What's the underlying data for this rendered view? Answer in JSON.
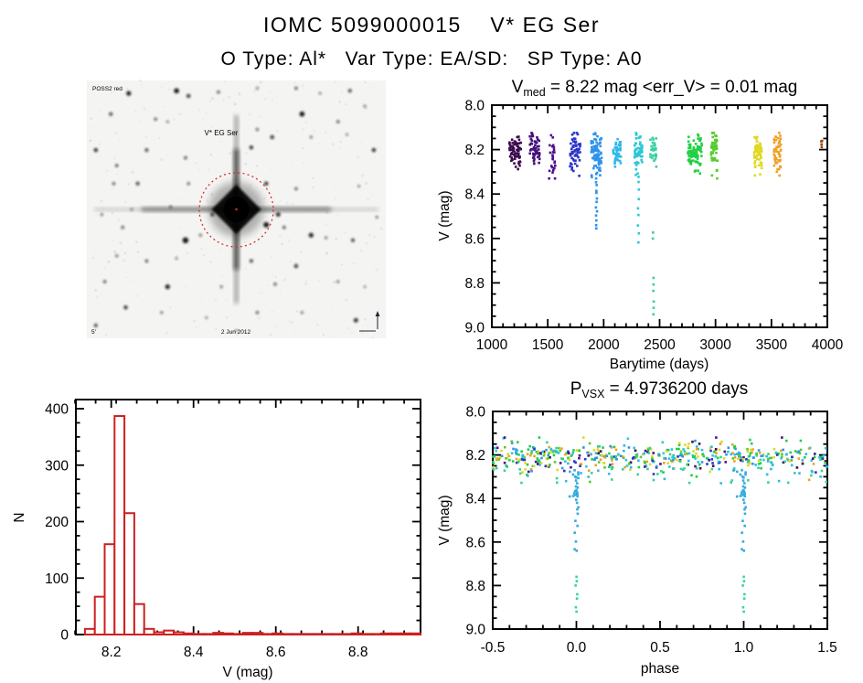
{
  "page": {
    "title": "IOMC 5099000015    V* EG Ser",
    "subtitle": "O Type: Al*   Var Type: EA/SD:   SP Type: A0"
  },
  "finder": {
    "star_label": "V* EG Ser",
    "corner_text": "POSS2 red",
    "bottom_text": "2 Jun 2012",
    "scale_text": "5'",
    "circle_color": "#d03030",
    "annotation_color": "#2a2a99",
    "stars": [
      [
        3,
        27,
        2.2,
        0.85
      ],
      [
        8,
        13,
        2.0,
        0.7
      ],
      [
        14,
        5,
        2.6,
        0.9
      ],
      [
        30,
        4,
        2.8,
        0.95
      ],
      [
        34,
        6,
        2.2,
        0.8
      ],
      [
        44,
        4.5,
        1.8,
        0.6
      ],
      [
        57,
        3,
        1.6,
        0.5
      ],
      [
        70,
        3,
        1.8,
        0.65
      ],
      [
        78,
        5,
        1.5,
        0.5
      ],
      [
        88,
        4,
        2.0,
        0.7
      ],
      [
        72,
        13,
        2.8,
        0.95
      ],
      [
        84,
        16,
        1.8,
        0.6
      ],
      [
        93,
        10,
        1.6,
        0.55
      ],
      [
        23,
        15,
        1.8,
        0.6
      ],
      [
        27,
        16,
        1.5,
        0.5
      ],
      [
        57,
        19,
        1.7,
        0.6
      ],
      [
        62,
        22,
        2.2,
        0.8
      ],
      [
        75,
        22,
        1.6,
        0.55
      ],
      [
        87,
        21,
        1.4,
        0.5
      ],
      [
        20,
        27,
        2.0,
        0.7
      ],
      [
        10,
        33,
        1.6,
        0.8
      ],
      [
        33,
        30,
        1.8,
        0.65
      ],
      [
        55,
        26,
        2.0,
        0.9
      ],
      [
        96,
        27,
        2.2,
        0.85
      ],
      [
        9,
        40,
        1.8,
        0.6
      ],
      [
        17,
        40,
        2.0,
        0.75
      ],
      [
        34,
        40,
        1.7,
        0.6
      ],
      [
        60,
        40,
        2.2,
        0.85
      ],
      [
        70,
        42,
        1.8,
        0.6
      ],
      [
        91,
        41,
        1.5,
        0.5
      ],
      [
        5,
        52,
        1.6,
        0.55
      ],
      [
        15,
        50,
        1.5,
        0.5
      ],
      [
        28,
        49,
        1.6,
        0.6
      ],
      [
        42,
        52,
        2.0,
        0.8
      ],
      [
        64,
        52,
        2.4,
        0.9
      ],
      [
        97,
        53,
        1.5,
        0.6
      ],
      [
        12,
        57,
        1.8,
        0.6
      ],
      [
        33,
        62,
        3.2,
        0.95
      ],
      [
        38,
        60,
        1.6,
        0.6
      ],
      [
        60,
        56,
        3.0,
        0.95
      ],
      [
        66,
        57,
        1.8,
        0.65
      ],
      [
        75,
        60,
        2.6,
        0.9
      ],
      [
        80,
        61,
        1.6,
        0.55
      ],
      [
        89,
        62,
        2.0,
        0.75
      ],
      [
        10,
        68,
        1.6,
        0.6
      ],
      [
        20,
        70,
        1.8,
        0.65
      ],
      [
        30,
        69,
        1.5,
        0.5
      ],
      [
        55,
        70,
        2.0,
        0.7
      ],
      [
        70,
        72,
        2.2,
        0.8
      ],
      [
        6,
        78,
        1.8,
        0.65
      ],
      [
        27,
        80,
        2.6,
        0.9
      ],
      [
        45,
        80,
        1.6,
        0.55
      ],
      [
        63,
        79,
        1.8,
        0.6
      ],
      [
        84,
        78,
        1.6,
        0.55
      ],
      [
        93,
        80,
        1.4,
        0.5
      ],
      [
        13,
        88,
        2.2,
        0.8
      ],
      [
        25,
        90,
        1.6,
        0.55
      ],
      [
        40,
        92,
        1.5,
        0.5
      ],
      [
        57,
        90,
        1.8,
        0.6
      ],
      [
        72,
        90,
        1.6,
        0.55
      ],
      [
        90,
        93,
        2.4,
        0.85
      ],
      [
        3,
        95,
        2.0,
        0.7
      ],
      [
        50,
        97,
        1.5,
        0.5
      ]
    ]
  },
  "chart_data": [
    {
      "type": "scatter",
      "name": "lightcurve-vs-time",
      "title_parts": {
        "pre": "V",
        "sub": "med",
        "post": " = 8.22 mag <err_V> = 0.01 mag"
      },
      "xlabel": "Barytime (days)",
      "ylabel": "V (mag)",
      "xlim": [
        1000,
        4000
      ],
      "ylim": [
        8.0,
        9.0
      ],
      "y_inverted": true,
      "xticks": [
        1000,
        1500,
        2000,
        2500,
        3000,
        3500,
        4000
      ],
      "xtick_minor": 100,
      "yticks": [
        8.0,
        8.2,
        8.4,
        8.6,
        8.8,
        9.0
      ],
      "ytick_minor": 0.05,
      "median_v": 8.22,
      "err_v": 0.01,
      "clusters": [
        {
          "t": 1210,
          "dt": 45,
          "color": "#3b0b4e",
          "n": 70,
          "vc": 8.21,
          "vs": 0.04
        },
        {
          "t": 1385,
          "dt": 40,
          "color": "#45107c",
          "n": 50,
          "vc": 8.2,
          "vs": 0.038
        },
        {
          "t": 1540,
          "dt": 25,
          "color": "#4d0f8e",
          "n": 25,
          "vc": 8.23,
          "vs": 0.045
        },
        {
          "t": 1745,
          "dt": 40,
          "color": "#2b35c8",
          "n": 60,
          "vc": 8.21,
          "vs": 0.04
        },
        {
          "t": 1935,
          "dt": 40,
          "color": "#2f93e8",
          "n": 80,
          "vc": 8.21,
          "vs": 0.045,
          "tail": [
            8.3,
            8.31,
            8.33,
            8.35,
            8.36,
            8.38,
            8.4,
            8.42,
            8.44,
            8.46,
            8.48,
            8.5,
            8.52,
            8.54,
            8.56
          ]
        },
        {
          "t": 2120,
          "dt": 30,
          "color": "#30b8e8",
          "n": 45,
          "vc": 8.21,
          "vs": 0.04
        },
        {
          "t": 2310,
          "dt": 30,
          "color": "#2cc8d8",
          "n": 60,
          "vc": 8.2,
          "vs": 0.045,
          "tail": [
            8.32,
            8.35,
            8.38,
            8.42,
            8.46,
            8.5,
            8.54,
            8.58,
            8.62
          ]
        },
        {
          "t": 2445,
          "dt": 25,
          "color": "#3ad0a0",
          "n": 30,
          "vc": 8.21,
          "vs": 0.035,
          "tail": [
            8.57,
            8.6,
            8.78,
            8.81,
            8.84,
            8.88,
            8.91,
            8.94
          ]
        },
        {
          "t": 2815,
          "dt": 55,
          "color": "#22d044",
          "n": 90,
          "vc": 8.21,
          "vs": 0.035
        },
        {
          "t": 2990,
          "dt": 25,
          "color": "#56cc30",
          "n": 50,
          "vc": 8.2,
          "vs": 0.048
        },
        {
          "t": 3380,
          "dt": 30,
          "color": "#e0d820",
          "n": 60,
          "vc": 8.2,
          "vs": 0.045
        },
        {
          "t": 3555,
          "dt": 28,
          "color": "#f0a028",
          "n": 55,
          "vc": 8.21,
          "vs": 0.045
        },
        {
          "t": 3950,
          "dt": 8,
          "color": "#a84018",
          "n": 4,
          "vc": 8.17,
          "vs": 0.012
        }
      ]
    },
    {
      "type": "histogram",
      "name": "v-magnitude-histogram",
      "xlabel": "V (mag)",
      "ylabel": "N",
      "xlim": [
        8.112,
        8.952
      ],
      "ylim": [
        0,
        400
      ],
      "xticks": [
        8.2,
        8.4,
        8.6,
        8.8
      ],
      "xtick_minor": 0.05,
      "yticks": [
        0,
        100,
        200,
        300,
        400
      ],
      "ytick_minor": 25,
      "bar_color": "#cc2020",
      "bin_start": 8.136,
      "bin_width": 0.024,
      "counts": [
        10,
        67,
        160,
        387,
        215,
        54,
        10,
        4,
        7,
        4,
        2,
        1,
        1,
        3,
        2,
        1,
        3,
        3,
        1,
        2,
        1,
        1,
        1,
        1,
        1,
        1,
        1,
        2,
        1,
        1,
        2,
        2,
        2,
        2
      ]
    },
    {
      "type": "scatter",
      "name": "phase-folded-lightcurve",
      "title_parts": {
        "pre": "P",
        "sub": "VSX",
        "post": " = 4.9736200 days"
      },
      "period_days": 4.97362,
      "xlabel": "phase",
      "ylabel": "V (mag)",
      "xlim": [
        -0.5,
        1.5
      ],
      "ylim": [
        8.0,
        9.0
      ],
      "y_inverted": true,
      "xticks": [
        -0.5,
        0.0,
        0.5,
        1.0,
        1.5
      ],
      "xtick_minor": 0.1,
      "yticks": [
        8.0,
        8.2,
        8.4,
        8.6,
        8.8,
        9.0
      ],
      "ytick_minor": 0.05,
      "band": {
        "n": 520,
        "vc": 8.21,
        "vs": 0.033,
        "palette": [
          "#3b0b4e",
          "#45107c",
          "#4d0f8e",
          "#2b35c8",
          "#2f93e8",
          "#30b8e8",
          "#2cc8d8",
          "#3ad0a0",
          "#22d044",
          "#56cc30",
          "#e0d820",
          "#f0a028"
        ],
        "weights": [
          1,
          1,
          1,
          2,
          3,
          2,
          3,
          2,
          4,
          2,
          4,
          3
        ]
      },
      "eclipses": {
        "phases": [
          0.0,
          1.0
        ],
        "core_color": "#35aade",
        "deep_color": "#3cd2a2",
        "core_v": [
          8.28,
          8.3,
          8.32,
          8.34,
          8.36,
          8.38,
          8.41,
          8.44,
          8.47,
          8.5,
          8.53,
          8.56,
          8.6,
          8.63
        ],
        "deep_v": [
          8.76,
          8.78,
          8.8,
          8.84,
          8.86,
          8.9,
          8.92
        ],
        "wing_vmin": 8.26,
        "wing_vmax": 8.42,
        "wing_n": 12
      }
    }
  ]
}
